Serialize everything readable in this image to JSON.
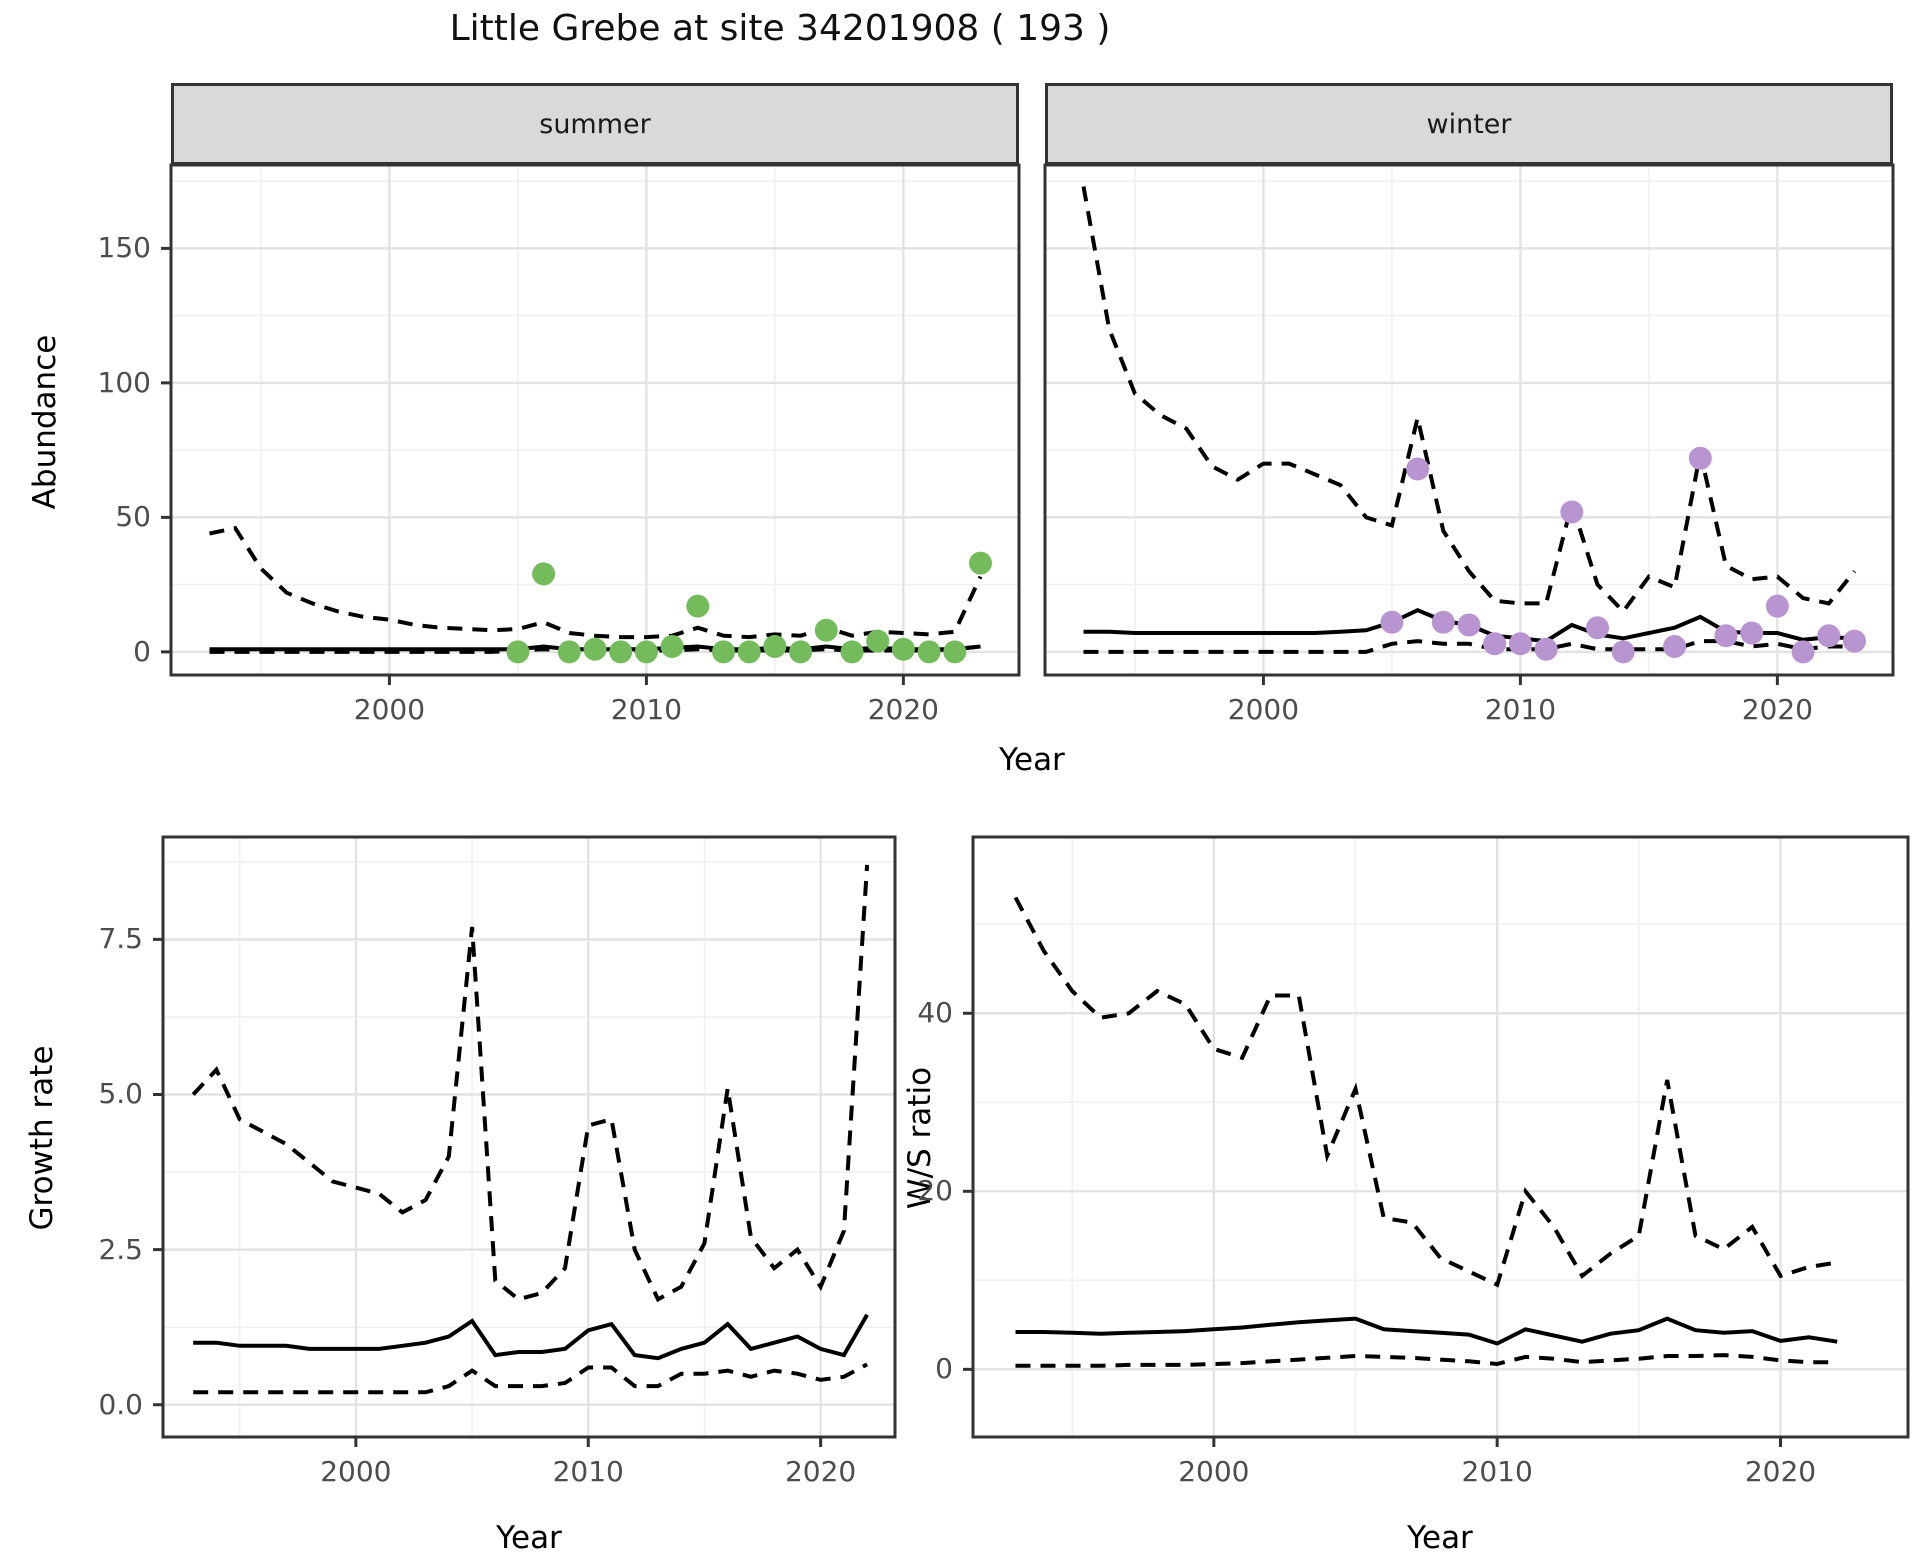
{
  "title": "Little Grebe at site 34201908 ( 193 )",
  "colors": {
    "summer_point": "#74bb5c",
    "winter_point": "#b894d0",
    "strip_bg": "#d9d9d9",
    "panel_border": "#333333",
    "grid_major": "#e3e3e3",
    "grid_minor": "#f0f0f0",
    "line": "#000000",
    "axis_text": "#4d4d4d"
  },
  "chart_data": [
    {
      "type": "line",
      "facet": "summer",
      "ylabel": "Abundance",
      "xlabel": "Year",
      "x_tick_values": [
        2000,
        2010,
        2020
      ],
      "x_tick_labels": [
        "2000",
        "2010",
        "2020"
      ],
      "y_tick_values": [
        0,
        50,
        100,
        150
      ],
      "y_tick_labels": [
        "0",
        "50",
        "100",
        "150"
      ],
      "x_minor": [
        1995,
        2005,
        2015
      ],
      "y_minor": [
        25,
        75,
        125,
        175
      ],
      "xlim": [
        1991.5,
        2024.5
      ],
      "ylim": [
        -8.6,
        181
      ],
      "grid": true,
      "years": [
        1993,
        1994,
        1995,
        1996,
        1997,
        1998,
        1999,
        2000,
        2001,
        2002,
        2003,
        2004,
        2005,
        2006,
        2007,
        2008,
        2009,
        2010,
        2011,
        2012,
        2013,
        2014,
        2015,
        2016,
        2017,
        2018,
        2019,
        2020,
        2021,
        2022,
        2023
      ],
      "series": [
        {
          "name": "median",
          "style": "solid",
          "values": [
            1,
            1,
            1,
            1,
            1,
            1,
            1,
            1,
            1,
            1,
            1,
            1,
            1,
            2,
            1,
            1,
            1,
            1,
            1.5,
            2,
            1,
            1,
            1.5,
            1,
            2,
            1,
            1.5,
            1,
            1,
            1,
            2
          ]
        },
        {
          "name": "upper_ci",
          "style": "dashed",
          "values": [
            44,
            46,
            31,
            22,
            18,
            15,
            13,
            12,
            10,
            9,
            8.5,
            8,
            8.5,
            11,
            7,
            6,
            5.5,
            5.5,
            6,
            9,
            6,
            5.5,
            6.5,
            6,
            9,
            6,
            7.5,
            7,
            6.5,
            7.5,
            28
          ]
        },
        {
          "name": "lower_ci",
          "style": "dashed",
          "values": [
            0,
            0,
            0,
            0,
            0,
            0,
            0,
            0,
            0,
            0,
            0,
            0,
            0.5,
            1,
            0.5,
            0.5,
            0.5,
            0.5,
            0.5,
            1,
            0.5,
            0.5,
            0.5,
            0.5,
            1,
            0.5,
            0.5,
            0.5,
            0.5,
            1,
            2
          ]
        }
      ],
      "points": {
        "name": "observed_counts",
        "color": "#74bb5c",
        "x": [
          2005,
          2006,
          2007,
          2008,
          2009,
          2010,
          2011,
          2012,
          2013,
          2014,
          2015,
          2016,
          2017,
          2018,
          2019,
          2020,
          2021,
          2022,
          2023
        ],
        "values": [
          0,
          29,
          0,
          1,
          0,
          0,
          2,
          17,
          0,
          0,
          2,
          0,
          8,
          0,
          4,
          1,
          0,
          0,
          33
        ]
      }
    },
    {
      "type": "line",
      "facet": "winter",
      "ylabel": "Abundance",
      "xlabel": "Year",
      "x_tick_values": [
        2000,
        2010,
        2020
      ],
      "x_tick_labels": [
        "2000",
        "2010",
        "2020"
      ],
      "y_tick_values": [
        0,
        50,
        100,
        150
      ],
      "y_tick_labels": [
        "0",
        "50",
        "100",
        "150"
      ],
      "x_minor": [
        1995,
        2005,
        2015
      ],
      "y_minor": [
        25,
        75,
        125,
        175
      ],
      "xlim": [
        1991.5,
        2024.5
      ],
      "ylim": [
        -8.6,
        181
      ],
      "grid": true,
      "years": [
        1993,
        1994,
        1995,
        1996,
        1997,
        1998,
        1999,
        2000,
        2001,
        2002,
        2003,
        2004,
        2005,
        2006,
        2007,
        2008,
        2009,
        2010,
        2011,
        2012,
        2013,
        2014,
        2015,
        2016,
        2017,
        2018,
        2019,
        2020,
        2021,
        2022,
        2023
      ],
      "series": [
        {
          "name": "median",
          "style": "solid",
          "values": [
            7.5,
            7.5,
            7,
            7,
            7,
            7,
            7,
            7,
            7,
            7,
            7.5,
            8,
            11,
            15.5,
            11.5,
            10,
            6,
            5,
            4,
            10,
            6.5,
            5,
            7,
            9,
            13,
            7.5,
            7,
            7,
            4.5,
            5.5,
            5
          ]
        },
        {
          "name": "upper_ci",
          "style": "dashed",
          "values": [
            173,
            120,
            96,
            88,
            83,
            69,
            64,
            70,
            70,
            66,
            62,
            50,
            47,
            87,
            45,
            30,
            19,
            18,
            18,
            55,
            25,
            15,
            28,
            24,
            74,
            32,
            27,
            28,
            20,
            18,
            30
          ]
        },
        {
          "name": "lower_ci",
          "style": "dashed",
          "values": [
            0,
            0,
            0,
            0,
            0,
            0,
            0,
            0,
            0,
            0,
            0,
            0,
            3,
            4,
            3,
            3,
            1,
            1,
            1,
            3,
            1,
            1,
            1,
            1,
            4,
            4,
            2,
            3,
            1,
            2,
            2
          ]
        }
      ],
      "points": {
        "name": "observed_counts",
        "color": "#b894d0",
        "x": [
          2005,
          2006,
          2007,
          2008,
          2009,
          2010,
          2011,
          2012,
          2013,
          2014,
          2016,
          2017,
          2018,
          2019,
          2020,
          2021,
          2022,
          2023
        ],
        "values": [
          11,
          68,
          11,
          10,
          3,
          3,
          1,
          52,
          9,
          0,
          2,
          72,
          6,
          7,
          17,
          0,
          6,
          4
        ]
      }
    },
    {
      "type": "line",
      "facet": null,
      "ylabel": "Growth rate",
      "xlabel": "Year",
      "x_tick_values": [
        2000,
        2010,
        2020
      ],
      "x_tick_labels": [
        "2000",
        "2010",
        "2020"
      ],
      "y_tick_values": [
        0,
        2.5,
        5,
        7.5
      ],
      "y_tick_labels": [
        "0.0",
        "2.5",
        "5.0",
        "7.5"
      ],
      "x_minor": [
        1995,
        2005,
        2015
      ],
      "y_minor": [
        1.25,
        3.75,
        6.25,
        8.75
      ],
      "xlim": [
        1991.7,
        2023.2
      ],
      "ylim": [
        -0.52,
        9.15
      ],
      "grid": true,
      "years": [
        1993,
        1994,
        1995,
        1996,
        1997,
        1998,
        1999,
        2000,
        2001,
        2002,
        2003,
        2004,
        2005,
        2006,
        2007,
        2008,
        2009,
        2010,
        2011,
        2012,
        2013,
        2014,
        2015,
        2016,
        2017,
        2018,
        2019,
        2020,
        2021,
        2022
      ],
      "series": [
        {
          "name": "median",
          "style": "solid",
          "values": [
            1.0,
            1.0,
            0.95,
            0.95,
            0.95,
            0.9,
            0.9,
            0.9,
            0.9,
            0.95,
            1.0,
            1.1,
            1.35,
            0.8,
            0.85,
            0.85,
            0.9,
            1.2,
            1.3,
            0.8,
            0.75,
            0.9,
            1.0,
            1.3,
            0.9,
            1.0,
            1.1,
            0.9,
            0.8,
            1.45
          ]
        },
        {
          "name": "upper_ci",
          "style": "dashed",
          "values": [
            5.0,
            5.4,
            4.6,
            4.4,
            4.2,
            3.9,
            3.6,
            3.5,
            3.4,
            3.1,
            3.3,
            4.0,
            7.7,
            2.0,
            1.7,
            1.8,
            2.2,
            4.5,
            4.6,
            2.5,
            1.7,
            1.9,
            2.6,
            5.1,
            2.7,
            2.2,
            2.5,
            1.9,
            2.8,
            8.7
          ]
        },
        {
          "name": "lower_ci",
          "style": "dashed",
          "values": [
            0.2,
            0.2,
            0.2,
            0.2,
            0.2,
            0.2,
            0.2,
            0.2,
            0.2,
            0.2,
            0.2,
            0.3,
            0.55,
            0.3,
            0.3,
            0.3,
            0.35,
            0.6,
            0.6,
            0.3,
            0.3,
            0.5,
            0.5,
            0.55,
            0.45,
            0.55,
            0.5,
            0.4,
            0.45,
            0.65
          ]
        }
      ],
      "points": null
    },
    {
      "type": "line",
      "facet": null,
      "ylabel": "W/S ratio",
      "xlabel": "Year",
      "x_tick_values": [
        2000,
        2010,
        2020
      ],
      "x_tick_labels": [
        "2000",
        "2010",
        "2020"
      ],
      "y_tick_values": [
        0,
        20,
        40
      ],
      "y_tick_labels": [
        "0",
        "20",
        "40"
      ],
      "x_minor": [
        1995,
        2005,
        2015
      ],
      "y_minor": [
        10,
        30,
        50
      ],
      "xlim": [
        1991.5,
        2024.5
      ],
      "ylim": [
        -7.6,
        59.8
      ],
      "grid": true,
      "years": [
        1993,
        1994,
        1995,
        1996,
        1997,
        1998,
        1999,
        2000,
        2001,
        2002,
        2003,
        2004,
        2005,
        2006,
        2007,
        2008,
        2009,
        2010,
        2011,
        2012,
        2013,
        2014,
        2015,
        2016,
        2017,
        2018,
        2019,
        2020,
        2021,
        2022
      ],
      "series": [
        {
          "name": "median",
          "style": "solid",
          "values": [
            4.2,
            4.2,
            4.1,
            4.0,
            4.1,
            4.2,
            4.3,
            4.5,
            4.7,
            5.0,
            5.3,
            5.5,
            5.7,
            4.5,
            4.3,
            4.1,
            3.9,
            2.9,
            4.5,
            3.8,
            3.1,
            4.0,
            4.4,
            5.7,
            4.4,
            4.1,
            4.3,
            3.2,
            3.6,
            3.1
          ]
        },
        {
          "name": "upper_ci",
          "style": "dashed",
          "values": [
            53,
            47,
            42.5,
            39.5,
            40,
            42.5,
            41,
            36,
            35,
            42,
            42,
            24,
            31.5,
            17,
            16.5,
            12.5,
            11,
            9.5,
            20,
            16,
            10.5,
            13,
            15,
            32.5,
            15,
            13.5,
            16,
            10.5,
            11.5,
            12
          ]
        },
        {
          "name": "lower_ci",
          "style": "dashed",
          "values": [
            0.4,
            0.4,
            0.4,
            0.4,
            0.5,
            0.5,
            0.5,
            0.6,
            0.7,
            0.9,
            1.1,
            1.3,
            1.5,
            1.4,
            1.3,
            1.1,
            0.9,
            0.6,
            1.4,
            1.2,
            0.8,
            1.0,
            1.2,
            1.5,
            1.5,
            1.6,
            1.4,
            1.0,
            0.8,
            0.8
          ]
        }
      ],
      "points": null
    }
  ]
}
